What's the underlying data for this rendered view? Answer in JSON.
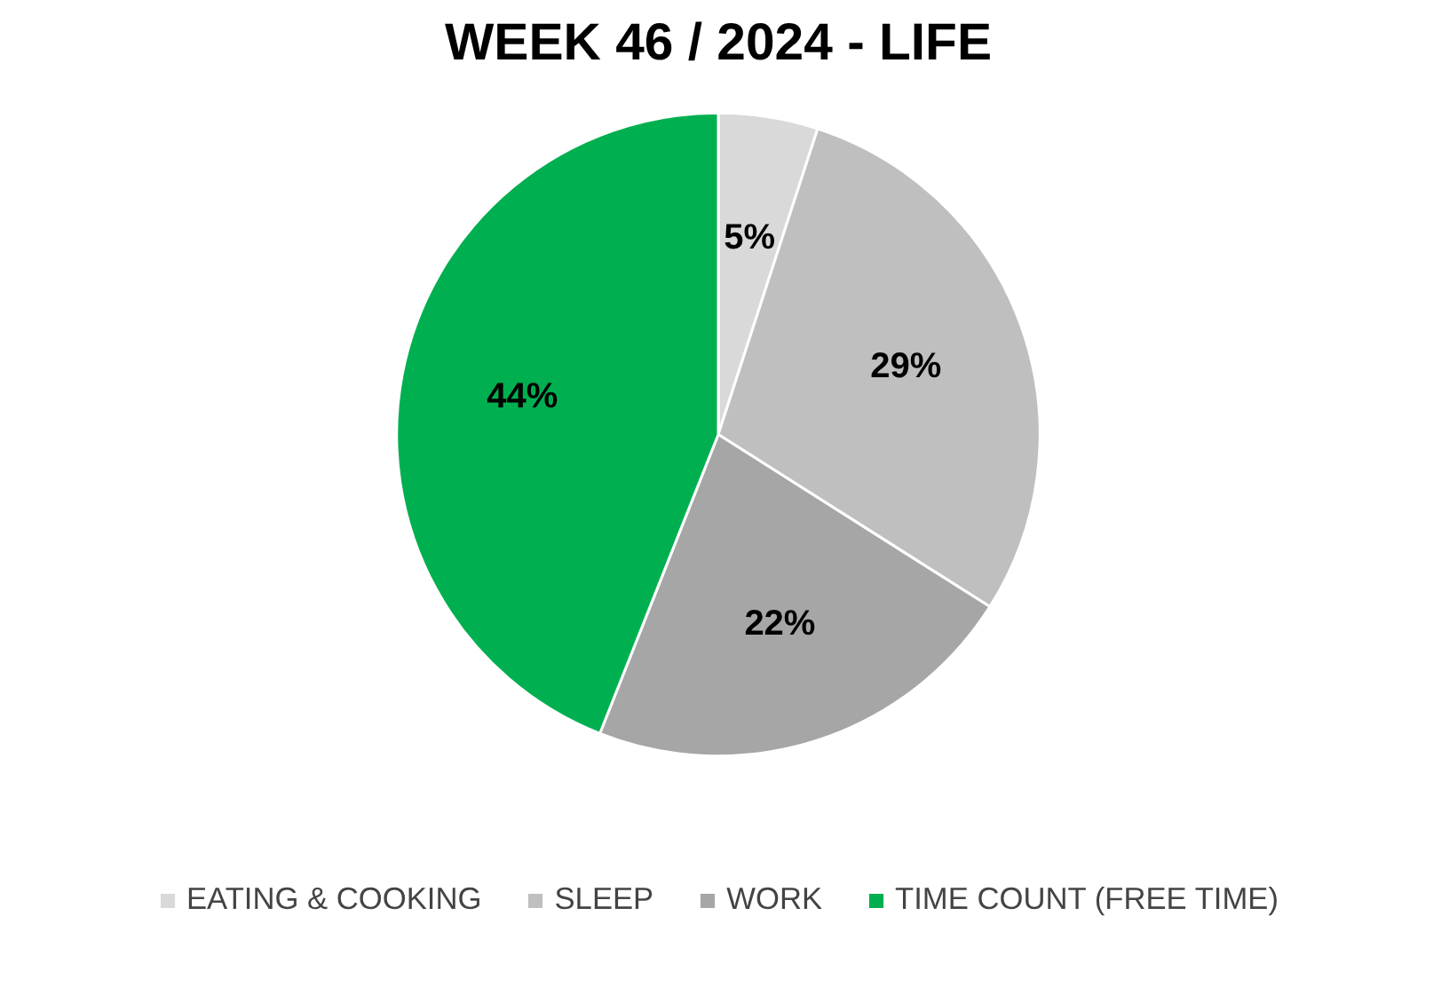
{
  "chart_data": {
    "type": "pie",
    "title": "WEEK 46 / 2024 - LIFE",
    "categories": [
      "EATING & COOKING",
      "SLEEP",
      "WORK",
      "TIME COUNT (FREE TIME)"
    ],
    "values": [
      5,
      29,
      22,
      44
    ],
    "colors": [
      "#d9d9d9",
      "#bfbfbf",
      "#a6a6a6",
      "#00b050"
    ],
    "value_labels": [
      "5%",
      "29%",
      "22%",
      "44%"
    ],
    "legend": "bottom"
  }
}
